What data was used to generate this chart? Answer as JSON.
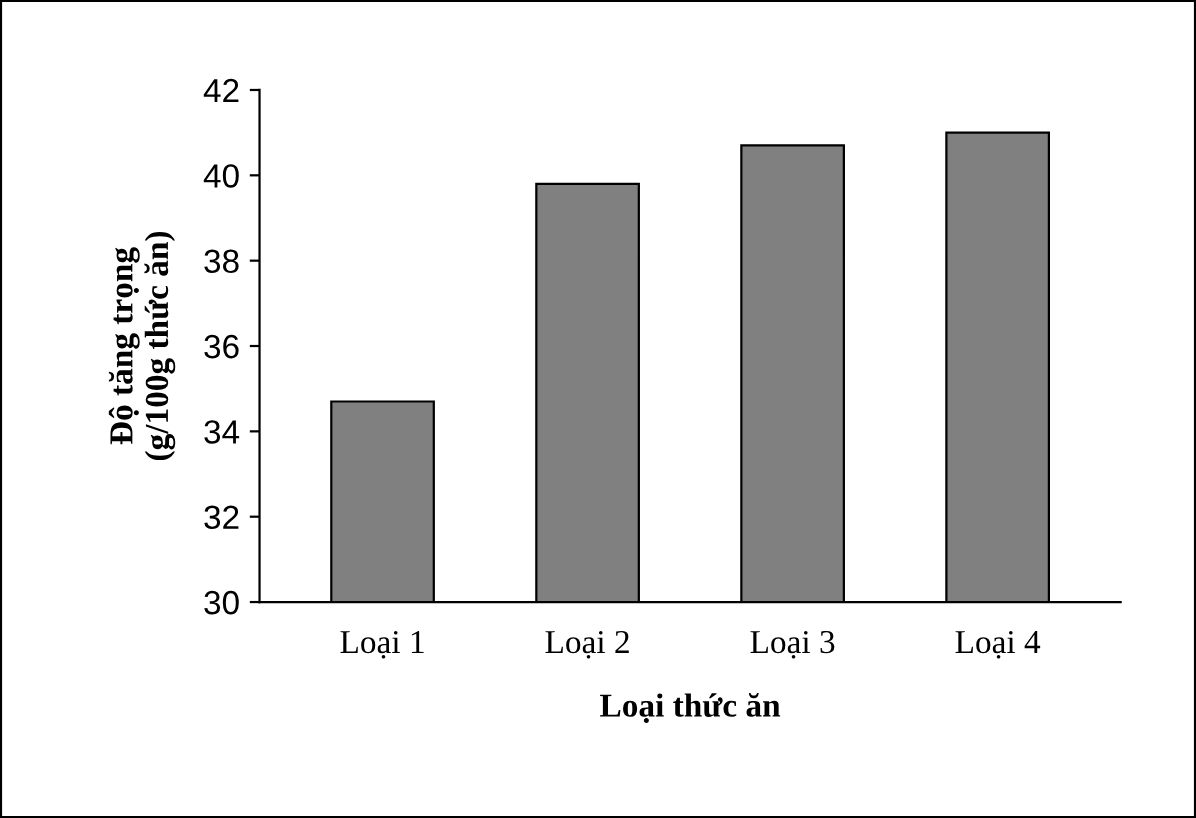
{
  "chart_data": {
    "type": "bar",
    "xlabel": "Loại thức ăn",
    "ylabel": "Độ tăng trọng\n(g/100g thức ăn)",
    "categories": [
      "Loại 1",
      "Loại 2",
      "Loại 3",
      "Loại 4"
    ],
    "values": [
      34.7,
      39.8,
      40.7,
      41.0
    ],
    "color": "#808080",
    "ylim": [
      30,
      42
    ],
    "yticks": [
      30,
      32,
      34,
      36,
      38,
      40,
      42
    ],
    "grid": false,
    "legend": false
  }
}
